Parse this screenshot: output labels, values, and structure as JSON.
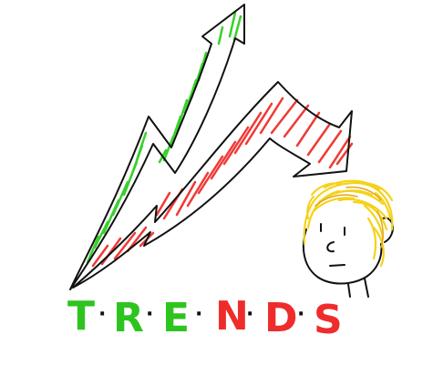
{
  "sketch": {
    "colors": {
      "outline": "#111111",
      "up_hatch": "#38d12a",
      "down_hatch": "#f03a35",
      "hair": "#f5d21a",
      "hair_shade": "#e0a818",
      "background": "#ffffff"
    },
    "word": {
      "text": "TRENDS",
      "letters": [
        {
          "char": "T",
          "color": "#2ec41f"
        },
        {
          "char": "R",
          "color": "#2ec41f"
        },
        {
          "char": "E",
          "color": "#2ec41f"
        },
        {
          "char": "N",
          "color": "#ee2c2c"
        },
        {
          "char": "D",
          "color": "#ee2c2c"
        },
        {
          "char": "S",
          "color": "#ee2c2c"
        }
      ],
      "separator": "·"
    }
  }
}
